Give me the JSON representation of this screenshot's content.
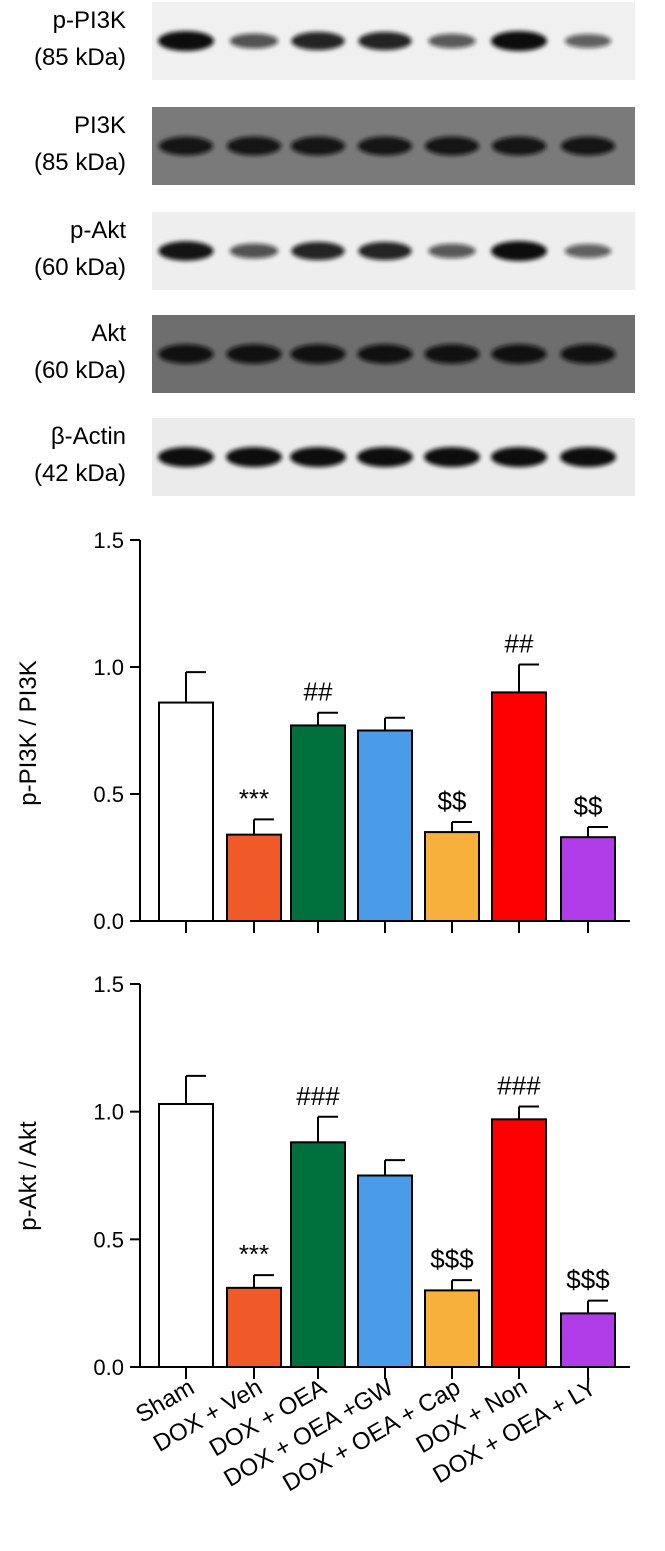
{
  "blots": [
    {
      "name": "p-PI3K",
      "size": "(85 kDa)",
      "bands": [
        1.0,
        0.55,
        0.85,
        0.85,
        0.5,
        1.0,
        0.45
      ],
      "background": "#f0f0f0"
    },
    {
      "name": "PI3K",
      "size": "(85 kDa)",
      "bands": [
        0.9,
        0.9,
        0.9,
        0.9,
        0.9,
        0.9,
        0.9
      ],
      "background": "#7a7a7a"
    },
    {
      "name": "p-Akt",
      "size": "(60 kDa)",
      "bands": [
        0.95,
        0.55,
        0.85,
        0.85,
        0.5,
        1.0,
        0.45
      ],
      "background": "#eeeeee"
    },
    {
      "name": "Akt",
      "size": "(60 kDa)",
      "bands": [
        0.95,
        0.95,
        0.95,
        0.95,
        0.95,
        0.95,
        0.95
      ],
      "background": "#6e6e6e"
    },
    {
      "name": "β-Actin",
      "size": "(42 kDa)",
      "bands": [
        1.0,
        1.0,
        1.0,
        1.0,
        1.0,
        1.0,
        1.0
      ],
      "background": "#ebebeb"
    }
  ],
  "chart_data": [
    {
      "type": "bar",
      "categories": [
        "Sham",
        "DOX + Veh",
        "DOX + OEA",
        "DOX + OEA +GW",
        "DOX + OEA + Cap",
        "DOX + Non",
        "DOX + OEA + LY"
      ],
      "values": [
        0.86,
        0.34,
        0.77,
        0.75,
        0.35,
        0.9,
        0.33
      ],
      "errors": [
        0.12,
        0.06,
        0.05,
        0.05,
        0.04,
        0.11,
        0.04
      ],
      "annotations": [
        "",
        "***",
        "##",
        "",
        "$$",
        "##",
        "$$"
      ],
      "colors": [
        "#ffffff",
        "#f05a28",
        "#00703c",
        "#4a9be8",
        "#f7b03c",
        "#ff0000",
        "#b03ce8"
      ],
      "ylabel": "p-PI3K / PI3K",
      "ylim": [
        0,
        1.5
      ],
      "yticks": [
        "0.0",
        "0.5",
        "1.0",
        "1.5"
      ]
    },
    {
      "type": "bar",
      "categories": [
        "Sham",
        "DOX + Veh",
        "DOX + OEA",
        "DOX + OEA +GW",
        "DOX + OEA + Cap",
        "DOX + Non",
        "DOX + OEA + LY"
      ],
      "values": [
        1.03,
        0.31,
        0.88,
        0.75,
        0.3,
        0.97,
        0.21
      ],
      "errors": [
        0.11,
        0.05,
        0.1,
        0.06,
        0.04,
        0.05,
        0.05
      ],
      "annotations": [
        "",
        "***",
        "###",
        "",
        "$$$",
        "###",
        "$$$"
      ],
      "colors": [
        "#ffffff",
        "#f05a28",
        "#00703c",
        "#4a9be8",
        "#f7b03c",
        "#ff0000",
        "#b03ce8"
      ],
      "ylabel": "p-Akt / Akt",
      "ylim": [
        0,
        1.5
      ],
      "yticks": [
        "0.0",
        "0.5",
        "1.0",
        "1.5"
      ]
    }
  ]
}
